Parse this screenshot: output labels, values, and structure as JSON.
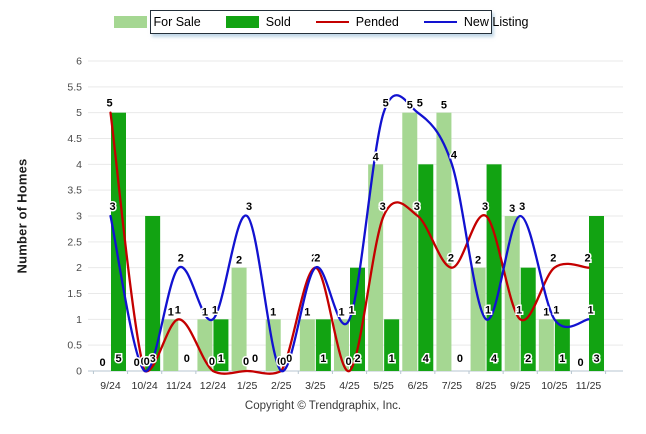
{
  "chart_data": {
    "type": "combo",
    "title": "",
    "categories": [
      "9/24",
      "10/24",
      "11/24",
      "12/24",
      "1/25",
      "2/25",
      "3/25",
      "4/25",
      "5/25",
      "6/25",
      "7/25",
      "8/25",
      "9/25",
      "10/25",
      "11/25"
    ],
    "series": [
      {
        "name": "For Sale",
        "type": "bar",
        "color": "#a5d792",
        "values": [
          0,
          0,
          1,
          1,
          2,
          1,
          1,
          1,
          4,
          5,
          5,
          2,
          3,
          1,
          0
        ]
      },
      {
        "name": "Sold",
        "type": "bar",
        "color": "#12a312",
        "values": [
          5,
          3,
          0,
          1,
          0,
          0,
          1,
          2,
          1,
          4,
          0,
          4,
          2,
          1,
          3
        ]
      },
      {
        "name": "Pended",
        "type": "line",
        "color": "#c40000",
        "values": [
          5,
          0,
          1,
          0,
          0,
          0,
          2,
          0,
          3,
          3,
          2,
          3,
          1,
          2,
          2
        ]
      },
      {
        "name": "New Listing",
        "type": "line",
        "color": "#1212d0",
        "values": [
          3,
          0,
          2,
          1,
          3,
          0,
          2,
          1,
          5,
          5,
          4,
          1,
          3,
          1,
          1
        ]
      }
    ],
    "xlabel": "",
    "ylabel": "Number of Homes",
    "ylim": [
      0,
      6
    ],
    "ytick_step": 0.5,
    "grid": true,
    "legend_position": "top",
    "colors": {
      "gridline": "#e9e9e9",
      "axis": "#b7c6d0",
      "y_tick_label": "#4a4a4a",
      "x_tick_label": "#2e2e2e",
      "data_label": "#000000"
    }
  },
  "footer": {
    "text": "Copyright © Trendgraphix, Inc."
  }
}
